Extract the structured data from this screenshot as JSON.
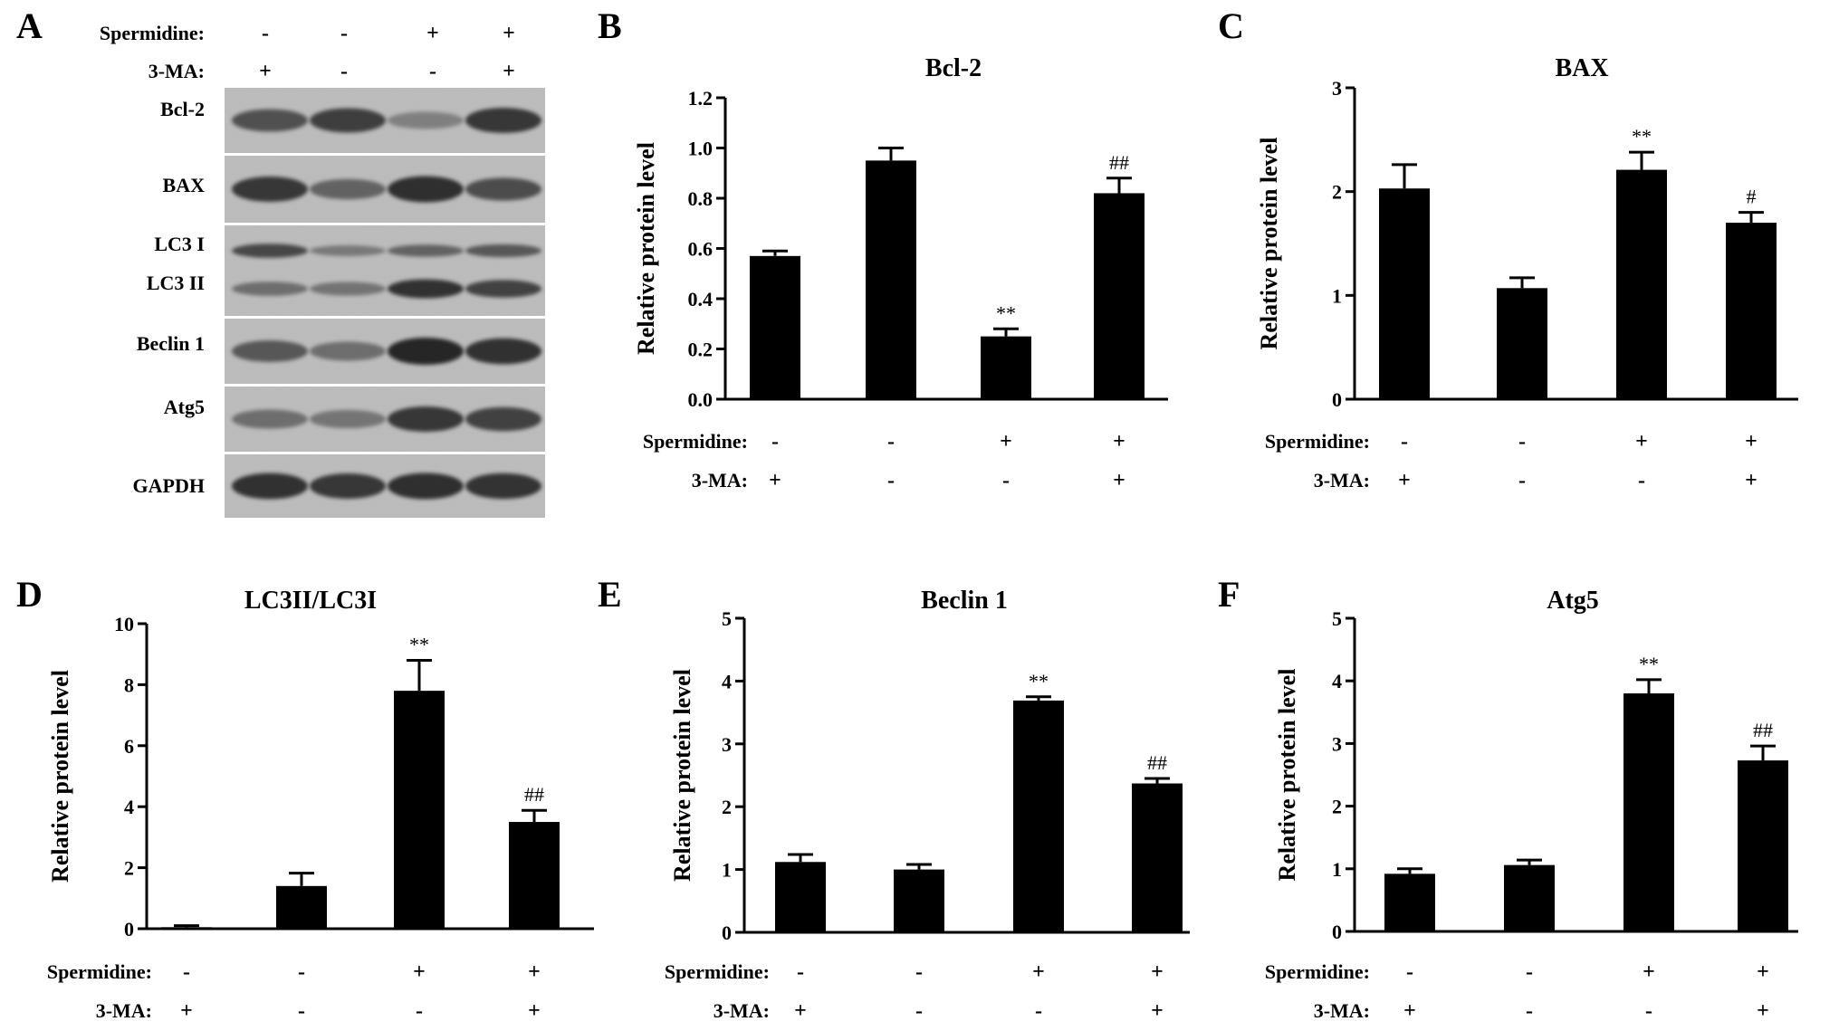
{
  "figure": {
    "treatments": {
      "spermidine_label": "Spermidine:",
      "ma_label": "3-MA:",
      "spermidine": [
        "-",
        "-",
        "+",
        "+"
      ],
      "ma": [
        "+",
        "-",
        "-",
        "+"
      ]
    }
  },
  "panel_a": {
    "letter": "A",
    "blot_labels": [
      "Bcl-2",
      "BAX",
      "LC3 I",
      "LC3 II",
      "Beclin 1",
      "Atg5",
      "GAPDH"
    ]
  },
  "chart_data": [
    {
      "panel": "B",
      "type": "bar",
      "title": "Bcl-2",
      "xlabel": "",
      "ylabel": "Relative protein level",
      "categories": [
        "-/+",
        "-/-",
        "+/-",
        "+/+"
      ],
      "values": [
        0.57,
        0.95,
        0.25,
        0.82
      ],
      "errors": [
        0.02,
        0.05,
        0.03,
        0.06
      ],
      "annotations": [
        "",
        "",
        "**",
        "##"
      ],
      "ylim": [
        0,
        1.2
      ],
      "yticks": [
        0.0,
        0.2,
        0.4,
        0.6,
        0.8,
        1.0,
        1.2
      ],
      "ytick_labels": [
        "0.0",
        "0.2",
        "0.4",
        "0.6",
        "0.8",
        "1.0",
        "1.2"
      ],
      "grid": false
    },
    {
      "panel": "C",
      "type": "bar",
      "title": "BAX",
      "xlabel": "",
      "ylabel": "Relative protein level",
      "categories": [
        "-/+",
        "-/-",
        "+/-",
        "+/+"
      ],
      "values": [
        2.03,
        1.07,
        2.21,
        1.7
      ],
      "errors": [
        0.23,
        0.1,
        0.17,
        0.1
      ],
      "annotations": [
        "",
        "",
        "**",
        "#"
      ],
      "ylim": [
        0,
        3
      ],
      "yticks": [
        0,
        1,
        2,
        3
      ],
      "ytick_labels": [
        "0",
        "1",
        "2",
        "3"
      ],
      "grid": false
    },
    {
      "panel": "D",
      "type": "bar",
      "title": "LC3II/LC3I",
      "xlabel": "",
      "ylabel": "Relative protein level",
      "categories": [
        "-/+",
        "-/-",
        "+/-",
        "+/+"
      ],
      "values": [
        0.05,
        1.4,
        7.8,
        3.5
      ],
      "errors": [
        0.05,
        0.42,
        1.0,
        0.38
      ],
      "annotations": [
        "",
        "",
        "**",
        "##"
      ],
      "ylim": [
        0,
        10
      ],
      "yticks": [
        0,
        2,
        4,
        6,
        8,
        10
      ],
      "ytick_labels": [
        "0",
        "2",
        "4",
        "6",
        "8",
        "10"
      ],
      "grid": false
    },
    {
      "panel": "E",
      "type": "bar",
      "title": "Beclin 1",
      "xlabel": "",
      "ylabel": "Relative protein level",
      "categories": [
        "-/+",
        "-/-",
        "+/-",
        "+/+"
      ],
      "values": [
        1.12,
        1.0,
        3.69,
        2.37
      ],
      "errors": [
        0.12,
        0.08,
        0.06,
        0.08
      ],
      "annotations": [
        "",
        "",
        "**",
        "##"
      ],
      "ylim": [
        0,
        5
      ],
      "yticks": [
        0,
        1,
        2,
        3,
        4,
        5
      ],
      "ytick_labels": [
        "0",
        "1",
        "2",
        "3",
        "4",
        "5"
      ],
      "grid": false
    },
    {
      "panel": "F",
      "type": "bar",
      "title": "Atg5",
      "xlabel": "",
      "ylabel": "Relative protein level",
      "categories": [
        "-/+",
        "-/-",
        "+/-",
        "+/+"
      ],
      "values": [
        0.92,
        1.06,
        3.8,
        2.73
      ],
      "errors": [
        0.08,
        0.08,
        0.22,
        0.23
      ],
      "annotations": [
        "",
        "",
        "**",
        "##"
      ],
      "ylim": [
        0,
        5
      ],
      "yticks": [
        0,
        1,
        2,
        3,
        4,
        5
      ],
      "ytick_labels": [
        "0",
        "1",
        "2",
        "3",
        "4",
        "5"
      ],
      "grid": false
    }
  ],
  "colors": {
    "bar": "#000000",
    "axis": "#000000",
    "blot_background": "#bdbdbd",
    "band": "#1f1f1f",
    "separator": "#ffffff"
  }
}
